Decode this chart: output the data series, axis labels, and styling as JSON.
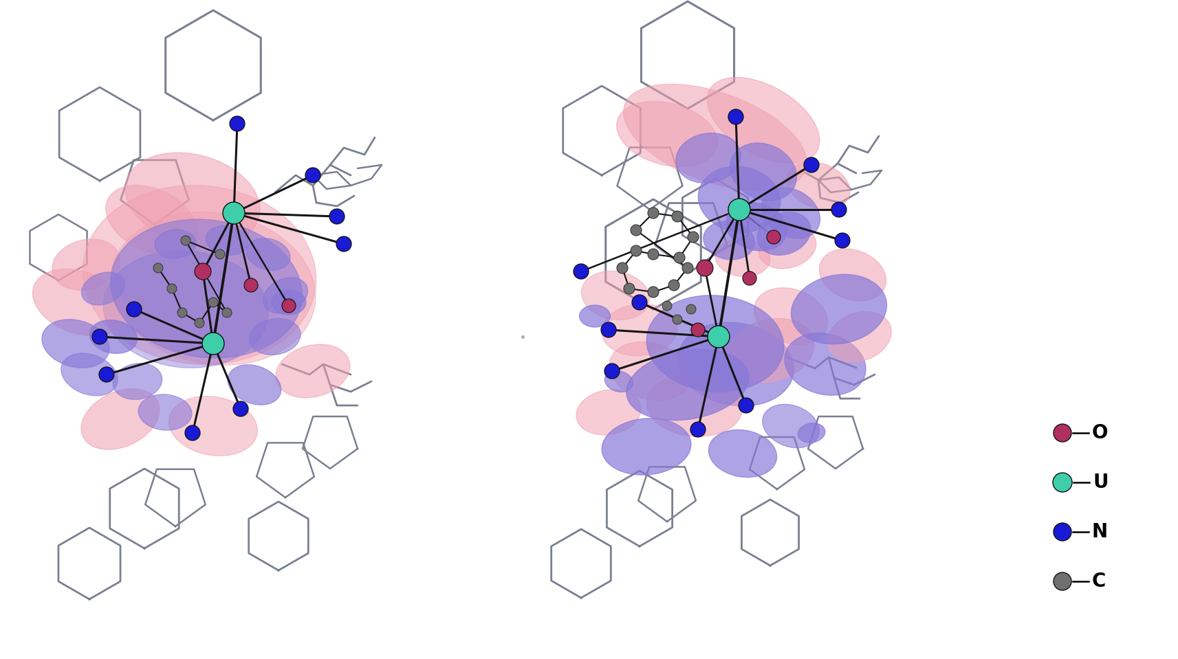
{
  "background_color": "#ffffff",
  "legend_items": [
    {
      "label": "O",
      "color": "#b03060"
    },
    {
      "label": "U",
      "color": "#3ecfaa"
    },
    {
      "label": "N",
      "color": "#1a1ad4"
    },
    {
      "label": "C",
      "color": "#808080"
    }
  ],
  "orbital_pink": "#f0a0b0",
  "orbital_purple": "#8878d8",
  "orbital_pink_alpha": 0.45,
  "orbital_purple_alpha": 0.6,
  "bond_color": "#151515",
  "frame_color": "#7a8090",
  "atom_O_color": "#b03060",
  "atom_U_color": "#3ecfaa",
  "atom_N_color": "#1a1ad4",
  "atom_C_color": "#707070",
  "fig_width": 17.13,
  "fig_height": 9.59,
  "dpi": 100
}
